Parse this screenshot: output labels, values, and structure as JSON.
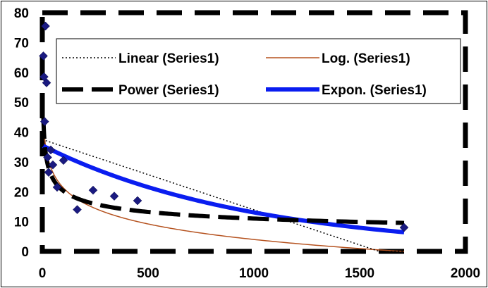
{
  "chart_data": {
    "type": "scatter",
    "title": "",
    "xlabel": "",
    "ylabel": "",
    "xlim": [
      0,
      2000
    ],
    "ylim": [
      0,
      80
    ],
    "xticks": [
      0,
      500,
      1000,
      1500,
      2000
    ],
    "yticks": [
      0,
      10,
      20,
      30,
      40,
      50,
      60,
      70,
      80
    ],
    "xtick_labels": [
      "0",
      "500",
      "1000",
      "1500",
      "2000"
    ],
    "ytick_labels": [
      "0",
      "10",
      "20",
      "30",
      "40",
      "50",
      "60",
      "70",
      "80"
    ],
    "grid": false,
    "legend_position": "top",
    "series": [
      {
        "kind": "points",
        "marker": "diamond",
        "color": "#1a1a80",
        "x": [
          5,
          8,
          11,
          15,
          20,
          25,
          30,
          40,
          50,
          70,
          100,
          165,
          240,
          340,
          450,
          1710
        ],
        "y": [
          65.5,
          58.5,
          43.5,
          75.5,
          56.5,
          31.5,
          26.5,
          34,
          29,
          21.5,
          30.5,
          14,
          20.5,
          18.5,
          17,
          8
        ]
      }
    ],
    "trendlines": [
      {
        "name": "Linear (Series1)",
        "kind": "linear",
        "color": "#000000",
        "style": "dotted",
        "a": 37.5,
        "b": -0.02355,
        "x_range": [
          0,
          1710
        ]
      },
      {
        "name": "Log. (Series1)",
        "kind": "log",
        "color": "#b5521f",
        "style": "solid",
        "a": 55.8,
        "b": -7.5,
        "x_range": [
          5,
          1710
        ]
      },
      {
        "name": "Power (Series1)",
        "kind": "power",
        "color": "#000000",
        "style": "dashed",
        "a": 68.6,
        "b": -0.265,
        "x_range": [
          5,
          1710
        ]
      },
      {
        "name": "Expon. (Series1)",
        "kind": "exp",
        "color": "#0a1df0",
        "style": "thick",
        "a": 35.5,
        "b": -0.001,
        "x_range": [
          5,
          1710
        ]
      }
    ]
  }
}
